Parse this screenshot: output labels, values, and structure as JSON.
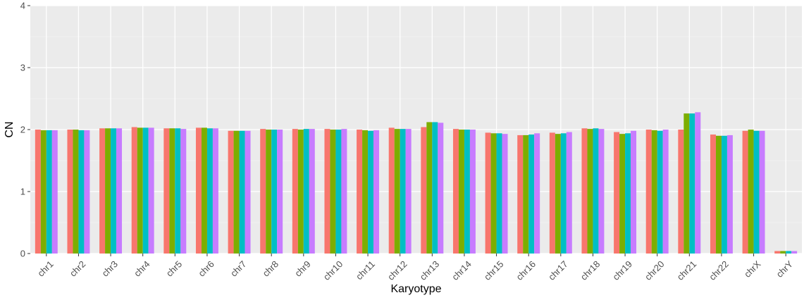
{
  "chart_data": {
    "type": "bar",
    "xlabel": "Karyotype",
    "ylabel": "CN",
    "ylim": [
      0,
      4
    ],
    "yticks": [
      0,
      1,
      2,
      3,
      4
    ],
    "grid": true,
    "legend": "none",
    "categories": [
      "chr1",
      "chr2",
      "chr3",
      "chr4",
      "chr5",
      "chr6",
      "chr7",
      "chr8",
      "chr9",
      "chr10",
      "chr11",
      "chr12",
      "chr13",
      "chr14",
      "chr15",
      "chr16",
      "chr17",
      "chr18",
      "chr19",
      "chr20",
      "chr21",
      "chr22",
      "chrX",
      "chrY"
    ],
    "series": [
      {
        "color": "#F8766D",
        "values": [
          2.0,
          2.0,
          2.02,
          2.04,
          2.02,
          2.03,
          1.98,
          2.01,
          2.01,
          2.01,
          2.0,
          2.03,
          2.04,
          2.01,
          1.95,
          1.91,
          1.95,
          2.02,
          1.96,
          2.0,
          2.0,
          1.92,
          1.98,
          0.04
        ]
      },
      {
        "color": "#7CAE00",
        "values": [
          1.99,
          2.0,
          2.02,
          2.03,
          2.02,
          2.03,
          1.98,
          2.0,
          2.0,
          2.0,
          1.99,
          2.01,
          2.12,
          2.0,
          1.94,
          1.91,
          1.93,
          2.01,
          1.93,
          1.99,
          2.26,
          1.9,
          2.0,
          0.04
        ]
      },
      {
        "color": "#00BFC4",
        "values": [
          1.99,
          1.99,
          2.02,
          2.03,
          2.02,
          2.02,
          1.98,
          2.0,
          2.01,
          2.0,
          1.98,
          2.01,
          2.12,
          2.0,
          1.94,
          1.92,
          1.94,
          2.02,
          1.94,
          1.98,
          2.26,
          1.9,
          1.98,
          0.04
        ]
      },
      {
        "color": "#C77CFF",
        "values": [
          1.99,
          1.99,
          2.02,
          2.03,
          2.01,
          2.02,
          1.98,
          2.0,
          2.01,
          2.01,
          1.99,
          2.01,
          2.11,
          2.0,
          1.93,
          1.94,
          1.96,
          2.01,
          1.98,
          2.0,
          2.28,
          1.91,
          1.98,
          0.04
        ]
      }
    ]
  },
  "colors": {
    "panel_background": "#EBEBEB",
    "grid_major": "#FFFFFF",
    "grid_minor": "#F5F5F5"
  }
}
